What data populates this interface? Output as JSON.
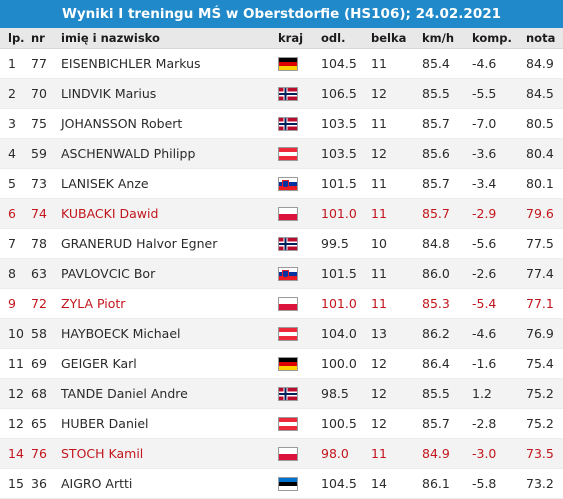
{
  "title": "Wyniki I treningu MŚ w Oberstdorfie (HS106); 24.02.2021",
  "headers": {
    "lp": "lp.",
    "nr": "nr",
    "name": "imię i nazwisko",
    "kraj": "kraj",
    "odl": "odl.",
    "belka": "belka",
    "kmh": "km/h",
    "komp": "komp.",
    "nota": "nota"
  },
  "colors": {
    "title_bg": "#1f89c9",
    "highlight_text": "#c2161c"
  },
  "rows": [
    {
      "lp": "1",
      "nr": "77",
      "name": "EISENBICHLER Markus",
      "country": "ger",
      "odl": "104.5",
      "belka": "11",
      "kmh": "85.4",
      "komp": "-4.6",
      "nota": "84.9",
      "highlight": false
    },
    {
      "lp": "2",
      "nr": "70",
      "name": "LINDVIK Marius",
      "country": "nor",
      "odl": "106.5",
      "belka": "12",
      "kmh": "85.5",
      "komp": "-5.5",
      "nota": "84.5",
      "highlight": false
    },
    {
      "lp": "3",
      "nr": "75",
      "name": "JOHANSSON Robert",
      "country": "nor",
      "odl": "103.5",
      "belka": "11",
      "kmh": "85.7",
      "komp": "-7.0",
      "nota": "80.5",
      "highlight": false
    },
    {
      "lp": "4",
      "nr": "59",
      "name": "ASCHENWALD Philipp",
      "country": "aut",
      "odl": "103.5",
      "belka": "12",
      "kmh": "85.6",
      "komp": "-3.6",
      "nota": "80.4",
      "highlight": false
    },
    {
      "lp": "5",
      "nr": "73",
      "name": "LANISEK Anze",
      "country": "slo",
      "odl": "101.5",
      "belka": "11",
      "kmh": "85.7",
      "komp": "-3.4",
      "nota": "80.1",
      "highlight": false
    },
    {
      "lp": "6",
      "nr": "74",
      "name": "KUBACKI Dawid",
      "country": "pol",
      "odl": "101.0",
      "belka": "11",
      "kmh": "85.7",
      "komp": "-2.9",
      "nota": "79.6",
      "highlight": true
    },
    {
      "lp": "7",
      "nr": "78",
      "name": "GRANERUD Halvor Egner",
      "country": "nor",
      "odl": "99.5",
      "belka": "10",
      "kmh": "84.8",
      "komp": "-5.6",
      "nota": "77.5",
      "highlight": false
    },
    {
      "lp": "8",
      "nr": "63",
      "name": "PAVLOVCIC Bor",
      "country": "slo",
      "odl": "101.5",
      "belka": "11",
      "kmh": "86.0",
      "komp": "-2.6",
      "nota": "77.4",
      "highlight": false
    },
    {
      "lp": "9",
      "nr": "72",
      "name": "ZYLA Piotr",
      "country": "pol",
      "odl": "101.0",
      "belka": "11",
      "kmh": "85.3",
      "komp": "-5.4",
      "nota": "77.1",
      "highlight": true
    },
    {
      "lp": "10",
      "nr": "58",
      "name": "HAYBOECK Michael",
      "country": "aut",
      "odl": "104.0",
      "belka": "13",
      "kmh": "86.2",
      "komp": "-4.6",
      "nota": "76.9",
      "highlight": false
    },
    {
      "lp": "11",
      "nr": "69",
      "name": "GEIGER Karl",
      "country": "ger",
      "odl": "100.0",
      "belka": "12",
      "kmh": "86.4",
      "komp": "-1.6",
      "nota": "75.4",
      "highlight": false
    },
    {
      "lp": "12",
      "nr": "68",
      "name": "TANDE Daniel Andre",
      "country": "nor",
      "odl": "98.5",
      "belka": "12",
      "kmh": "85.5",
      "komp": "1.2",
      "nota": "75.2",
      "highlight": false
    },
    {
      "lp": "12",
      "nr": "65",
      "name": "HUBER Daniel",
      "country": "aut",
      "odl": "100.5",
      "belka": "12",
      "kmh": "85.7",
      "komp": "-2.8",
      "nota": "75.2",
      "highlight": false
    },
    {
      "lp": "14",
      "nr": "76",
      "name": "STOCH Kamil",
      "country": "pol",
      "odl": "98.0",
      "belka": "11",
      "kmh": "84.9",
      "komp": "-3.0",
      "nota": "73.5",
      "highlight": true
    },
    {
      "lp": "15",
      "nr": "36",
      "name": "AIGRO Artti",
      "country": "est",
      "odl": "104.5",
      "belka": "14",
      "kmh": "86.1",
      "komp": "-5.8",
      "nota": "73.2",
      "highlight": false
    }
  ]
}
